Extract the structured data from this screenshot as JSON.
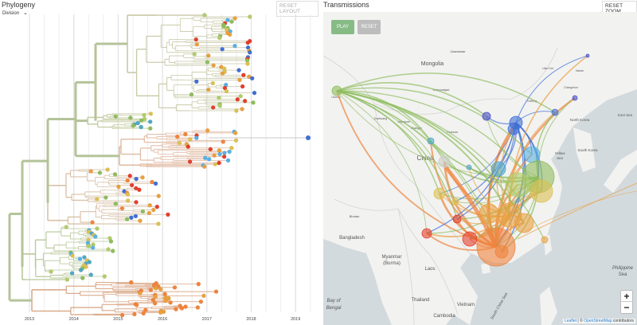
{
  "phylogeny": {
    "title": "Phylogeny",
    "reset_layout_label": "RESET LAYOUT",
    "color_by": "Division",
    "years": [
      "2013",
      "2014",
      "2015",
      "2016",
      "2017",
      "2018",
      "2019"
    ]
  },
  "transmissions": {
    "title": "Transmissions",
    "reset_zoom_label": "RESET ZOOM",
    "play_label": "PLAY",
    "reset_label": "RESET",
    "zoom_in": "+",
    "zoom_out": "−",
    "attribution": {
      "leaflet": "Leaflet",
      "sep": " | © ",
      "osm": "OpenStreetMap",
      "contrib": " contributors"
    },
    "map_labels": [
      "Mongolia",
      "China",
      "Bangladesh",
      "Myanmar",
      "(Burma)",
      "Laos",
      "Thailand",
      "Vietnam",
      "Cambodia",
      "Bay of",
      "Bengal",
      "North Korea",
      "South Korea",
      "Yellow",
      "Sea",
      "Philippine",
      "Sea",
      "East Sea",
      "Ulaanbaatar",
      "Dalanzadgad",
      "Dunhuang",
      "Jiayuguan",
      "Zhangye",
      "Yinchuan",
      "Harbin",
      "Changchun",
      "Ulan Hot",
      "Chifeng",
      "Bhutan",
      "Urumqi",
      "South China Sea"
    ]
  },
  "colors": {
    "blue": "#3f6fd6",
    "darkblue": "#4b4fc8",
    "lightblue": "#5ab0e3",
    "teal": "#4fa8c4",
    "green": "#8fbd5e",
    "lightgreen": "#b2cc6a",
    "yellow": "#dcc052",
    "orange": "#e9a03f",
    "deeporange": "#f0843d",
    "red": "#e2402e",
    "branch": "#c2c2c2",
    "play": "#86bb86",
    "reset": "#bdbdbd"
  }
}
